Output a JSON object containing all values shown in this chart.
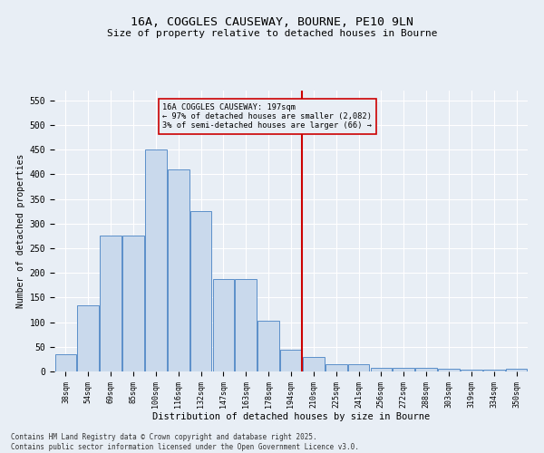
{
  "title": "16A, COGGLES CAUSEWAY, BOURNE, PE10 9LN",
  "subtitle": "Size of property relative to detached houses in Bourne",
  "xlabel": "Distribution of detached houses by size in Bourne",
  "ylabel": "Number of detached properties",
  "categories": [
    "38sqm",
    "54sqm",
    "69sqm",
    "85sqm",
    "100sqm",
    "116sqm",
    "132sqm",
    "147sqm",
    "163sqm",
    "178sqm",
    "194sqm",
    "210sqm",
    "225sqm",
    "241sqm",
    "256sqm",
    "272sqm",
    "288sqm",
    "303sqm",
    "319sqm",
    "334sqm",
    "350sqm"
  ],
  "values": [
    35,
    135,
    275,
    275,
    450,
    410,
    325,
    188,
    188,
    103,
    45,
    30,
    15,
    15,
    7,
    8,
    8,
    5,
    3,
    3,
    5
  ],
  "bar_color": "#c9d9ec",
  "bar_edge_color": "#5b8fc9",
  "vline_x_index": 10.5,
  "vline_color": "#cc0000",
  "annotation_text": "16A COGGLES CAUSEWAY: 197sqm\n← 97% of detached houses are smaller (2,082)\n3% of semi-detached houses are larger (66) →",
  "annotation_box_color": "#cc0000",
  "ylim": [
    0,
    570
  ],
  "yticks": [
    0,
    50,
    100,
    150,
    200,
    250,
    300,
    350,
    400,
    450,
    500,
    550
  ],
  "background_color": "#e8eef5",
  "grid_color": "#ffffff",
  "footer": "Contains HM Land Registry data © Crown copyright and database right 2025.\nContains public sector information licensed under the Open Government Licence v3.0."
}
